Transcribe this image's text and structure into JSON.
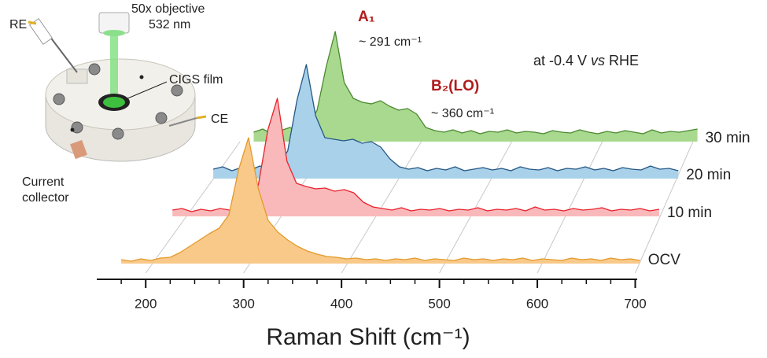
{
  "chart_data": {
    "type": "waterfall",
    "xlabel": "Raman Shift (cm⁻¹)",
    "xlim": [
      150,
      702
    ],
    "xticks": [
      200,
      300,
      400,
      500,
      600,
      700
    ],
    "xticks_minor": [
      175,
      225,
      250,
      275,
      325,
      350,
      375,
      425,
      450,
      475,
      525,
      550,
      575,
      625,
      650,
      675
    ],
    "annotations": {
      "peak_a1": "A₁",
      "peak_a1_shift": "~ 291 cm⁻¹",
      "peak_b2": "B₂(LO)",
      "peak_b2_shift": "~ 360 cm⁻¹",
      "condition": [
        "at -0.4 V ",
        "vs",
        " RHE"
      ]
    },
    "series": [
      {
        "name": "OCV",
        "color": "#e39a2a",
        "fill": "#f9c98a",
        "x": [
          175,
          185,
          195,
          205,
          215,
          225,
          235,
          245,
          255,
          265,
          275,
          285,
          295,
          305,
          315,
          325,
          335,
          345,
          355,
          365,
          375,
          385,
          395,
          405,
          415,
          425,
          435,
          445,
          455,
          465,
          475,
          485,
          495,
          505,
          515,
          525,
          535,
          545,
          555,
          565,
          575,
          585,
          595,
          605,
          615,
          625,
          635,
          645,
          655,
          665,
          675,
          685,
          695,
          705
        ],
        "values": [
          5,
          3,
          6,
          4,
          7,
          8,
          14,
          22,
          30,
          38,
          45,
          62,
          120,
          160,
          95,
          55,
          40,
          30,
          22,
          16,
          12,
          9,
          8,
          6,
          7,
          5,
          6,
          4,
          6,
          5,
          7,
          4,
          6,
          5,
          4,
          7,
          5,
          6,
          4,
          6,
          5,
          7,
          4,
          6,
          5,
          4,
          7,
          5,
          6,
          4,
          7,
          5,
          6,
          4
        ]
      },
      {
        "name": "10 min",
        "color": "#e8222c",
        "fill": "#f9b9bb",
        "x": [
          195,
          205,
          215,
          225,
          235,
          245,
          255,
          265,
          275,
          285,
          295,
          305,
          315,
          325,
          335,
          345,
          355,
          365,
          375,
          385,
          395,
          405,
          415,
          425,
          435,
          445,
          455,
          465,
          475,
          485,
          495,
          505,
          515,
          525,
          535,
          545,
          555,
          565,
          575,
          585,
          595,
          605,
          615,
          625,
          635,
          645,
          655,
          665,
          675,
          685,
          695,
          705
        ],
        "values": [
          8,
          10,
          6,
          9,
          7,
          10,
          8,
          12,
          18,
          40,
          110,
          150,
          70,
          42,
          38,
          35,
          36,
          32,
          34,
          30,
          18,
          12,
          10,
          8,
          11,
          7,
          9,
          8,
          10,
          7,
          9,
          8,
          11,
          7,
          9,
          8,
          10,
          7,
          12,
          8,
          9,
          7,
          10,
          8,
          9,
          11,
          7,
          9,
          8,
          10,
          7,
          9
        ]
      },
      {
        "name": "20 min",
        "color": "#255784",
        "fill": "#a9d2ea",
        "x": [
          205,
          215,
          225,
          235,
          245,
          255,
          265,
          275,
          285,
          295,
          305,
          315,
          325,
          335,
          345,
          355,
          365,
          375,
          385,
          395,
          405,
          415,
          425,
          435,
          445,
          455,
          465,
          475,
          485,
          495,
          505,
          515,
          525,
          535,
          545,
          555,
          565,
          575,
          585,
          595,
          605,
          615,
          625,
          635,
          645,
          655,
          665,
          675,
          685,
          695,
          705
        ],
        "values": [
          12,
          15,
          10,
          14,
          11,
          16,
          12,
          18,
          35,
          100,
          145,
          80,
          52,
          50,
          48,
          50,
          45,
          47,
          40,
          25,
          15,
          12,
          14,
          10,
          13,
          11,
          15,
          10,
          12,
          14,
          11,
          13,
          10,
          15,
          12,
          11,
          14,
          10,
          13,
          12,
          15,
          11,
          13,
          10,
          14,
          12,
          11,
          16,
          12,
          13,
          10
        ]
      },
      {
        "name": "30 min",
        "color": "#4a8a2e",
        "fill": "#a9d98f",
        "x": [
          215,
          225,
          235,
          245,
          255,
          265,
          275,
          285,
          295,
          305,
          315,
          325,
          335,
          345,
          355,
          365,
          375,
          385,
          395,
          405,
          415,
          425,
          435,
          445,
          455,
          465,
          475,
          485,
          495,
          505,
          515,
          525,
          535,
          545,
          555,
          565,
          575,
          585,
          595,
          605,
          615,
          625,
          635,
          645,
          655,
          665,
          675,
          685,
          695,
          705
        ],
        "values": [
          12,
          16,
          10,
          14,
          18,
          12,
          20,
          40,
          95,
          140,
          75,
          55,
          50,
          48,
          52,
          45,
          40,
          42,
          35,
          18,
          14,
          12,
          15,
          11,
          14,
          10,
          13,
          12,
          15,
          11,
          13,
          12,
          10,
          14,
          12,
          11,
          15,
          12,
          10,
          13,
          11,
          14,
          12,
          10,
          15,
          11,
          13,
          12,
          14,
          16
        ]
      }
    ]
  },
  "diagram": {
    "re": "RE",
    "objective": "50x objective",
    "laser": "532 nm",
    "film": "CIGS film",
    "ce": "CE",
    "collector": [
      "Current",
      "collector"
    ]
  }
}
